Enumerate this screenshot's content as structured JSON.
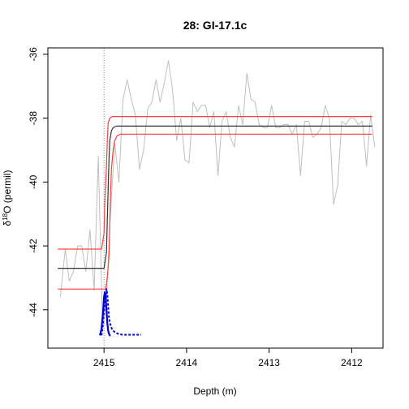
{
  "chart_data": {
    "type": "line",
    "title": "28: GI-17.1c",
    "xlabel": "Depth (m)",
    "ylabel_prefix": "δ",
    "ylabel_sup": "18",
    "ylabel_suffix": "O (permil)",
    "x_reversed": true,
    "xlim": [
      2415.68,
      2411.62
    ],
    "ylim": [
      -45.2,
      -35.8
    ],
    "x_ticks": [
      2415,
      2414,
      2413,
      2412
    ],
    "y_ticks": [
      -44,
      -42,
      -40,
      -38,
      -36
    ],
    "transition_marker": 2415.0,
    "series": [
      {
        "kind": "raw",
        "color": "#bebebe",
        "x": [
          2415.53,
          2415.47,
          2415.42,
          2415.37,
          2415.32,
          2415.27,
          2415.22,
          2415.17,
          2415.12,
          2415.07,
          2415.02,
          2414.97,
          2414.92,
          2414.87,
          2414.82,
          2414.77,
          2414.72,
          2414.67,
          2414.62,
          2414.57,
          2414.52,
          2414.47,
          2414.42,
          2414.37,
          2414.32,
          2414.27,
          2414.22,
          2414.17,
          2414.12,
          2414.07,
          2414.02,
          2413.97,
          2413.92,
          2413.87,
          2413.82,
          2413.77,
          2413.72,
          2413.67,
          2413.62,
          2413.57,
          2413.52,
          2413.47,
          2413.42,
          2413.37,
          2413.32,
          2413.27,
          2413.22,
          2413.17,
          2413.12,
          2413.07,
          2413.02,
          2412.97,
          2412.92,
          2412.87,
          2412.82,
          2412.77,
          2412.72,
          2412.67,
          2412.62,
          2412.57,
          2412.52,
          2412.47,
          2412.42,
          2412.37,
          2412.32,
          2412.27,
          2412.22,
          2412.17,
          2412.12,
          2412.07,
          2412.02,
          2411.97,
          2411.92,
          2411.87,
          2411.82,
          2411.77,
          2411.72
        ],
        "y": [
          -43.6,
          -42.1,
          -43.1,
          -42.8,
          -42.0,
          -42.0,
          -42.8,
          -41.5,
          -43.4,
          -39.2,
          -44.2,
          -43.7,
          -40.9,
          -38.8,
          -40.0,
          -37.4,
          -36.8,
          -37.4,
          -37.9,
          -39.6,
          -39.0,
          -37.7,
          -37.5,
          -36.8,
          -37.5,
          -36.9,
          -36.2,
          -37.1,
          -38.7,
          -38.0,
          -39.3,
          -39.4,
          -37.5,
          -37.8,
          -37.6,
          -37.6,
          -38.3,
          -37.8,
          -39.8,
          -38.1,
          -37.8,
          -38.6,
          -38.9,
          -37.6,
          -38.2,
          -36.6,
          -37.4,
          -37.5,
          -38.2,
          -38.3,
          -38.3,
          -37.6,
          -38.3,
          -38.3,
          -38.2,
          -38.2,
          -38.5,
          -38.2,
          -39.8,
          -38.1,
          -38.1,
          -38.6,
          -38.5,
          -38.3,
          -37.6,
          -38.0,
          -40.7,
          -40.1,
          -38.1,
          -38.2,
          -38.0,
          -38.0,
          -38.2,
          -38.1,
          -39.5,
          -37.9,
          -38.9
        ]
      },
      {
        "kind": "fit-median",
        "color": "#333333",
        "x": [
          2415.56,
          2415.0,
          2414.97,
          2414.96,
          2414.95,
          2414.94,
          2414.93,
          2414.91,
          2414.89,
          2414.85,
          2414.75,
          2414.4,
          2414.0,
          2413.5,
          2413.0,
          2412.5,
          2412.0,
          2411.75
        ],
        "y": [
          -42.7,
          -42.7,
          -42.2,
          -41.2,
          -40.2,
          -39.3,
          -38.7,
          -38.4,
          -38.3,
          -38.25,
          -38.25,
          -38.25,
          -38.25,
          -38.25,
          -38.25,
          -38.25,
          -38.25,
          -38.25
        ]
      },
      {
        "kind": "fit-upper",
        "color": "#ff4040",
        "x": [
          2415.56,
          2415.03,
          2415.0,
          2414.99,
          2414.97,
          2414.96,
          2414.95,
          2414.93,
          2414.9,
          2414.85,
          2414.75,
          2414.4,
          2414.0,
          2413.5,
          2413.0,
          2412.5,
          2412.0,
          2411.75
        ],
        "y": [
          -42.1,
          -42.1,
          -41.6,
          -40.6,
          -39.5,
          -38.7,
          -38.15,
          -38.0,
          -37.95,
          -37.95,
          -37.95,
          -37.95,
          -37.95,
          -37.95,
          -37.95,
          -37.95,
          -37.95,
          -37.95
        ]
      },
      {
        "kind": "fit-lower",
        "color": "#ff4040",
        "x": [
          2415.56,
          2414.98,
          2414.96,
          2414.94,
          2414.93,
          2414.92,
          2414.91,
          2414.89,
          2414.87,
          2414.84,
          2414.8,
          2414.75,
          2414.4,
          2414.0,
          2413.5,
          2413.0,
          2412.5,
          2412.0,
          2411.75
        ],
        "y": [
          -43.35,
          -43.35,
          -43.0,
          -42.3,
          -41.3,
          -40.3,
          -39.6,
          -39.0,
          -38.7,
          -38.55,
          -38.5,
          -38.5,
          -38.5,
          -38.5,
          -38.5,
          -38.5,
          -38.5,
          -38.5,
          -38.5
        ]
      },
      {
        "kind": "density-solid",
        "color": "#0000cc",
        "x": [
          2415.05,
          2415.03,
          2415.01,
          2415.0,
          2414.99,
          2414.98,
          2414.97,
          2414.96,
          2414.95,
          2414.94,
          2414.93,
          2414.92
        ],
        "y": [
          -44.8,
          -44.6,
          -44.0,
          -43.6,
          -43.45,
          -43.6,
          -44.0,
          -44.4,
          -44.65,
          -44.75,
          -44.8,
          -44.8
        ]
      },
      {
        "kind": "density-dotted",
        "color": "#0000cc",
        "x": [
          2415.03,
          2415.01,
          2414.99,
          2414.97,
          2414.96,
          2414.95,
          2414.94,
          2414.92,
          2414.9,
          2414.87,
          2414.83,
          2414.78,
          2414.7,
          2414.6,
          2414.55
        ],
        "y": [
          -44.8,
          -44.4,
          -43.7,
          -43.35,
          -43.5,
          -43.9,
          -44.25,
          -44.5,
          -44.62,
          -44.7,
          -44.75,
          -44.78,
          -44.78,
          -44.78,
          -44.78
        ]
      }
    ]
  }
}
